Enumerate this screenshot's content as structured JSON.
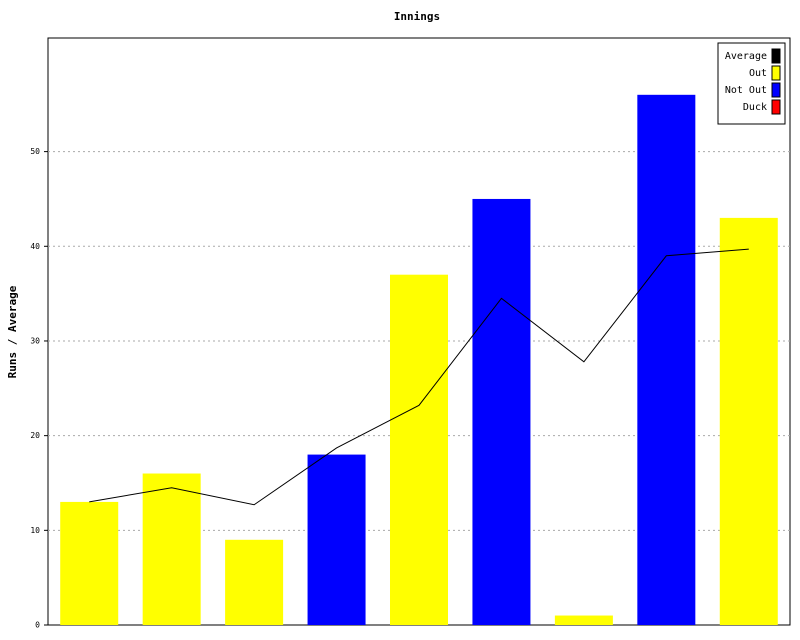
{
  "chart_data": {
    "type": "bar-line",
    "title": "Innings",
    "y_label": "Runs / Average",
    "categories": [
      null,
      null,
      null,
      null,
      null,
      null,
      null,
      null,
      null
    ],
    "series": [
      {
        "name": "Average",
        "type": "line",
        "color": "#000000",
        "values": [
          13,
          14.5,
          12.7,
          18.7,
          23.2,
          34.5,
          27.8,
          39,
          39.7
        ]
      },
      {
        "name": "Out",
        "type": "bar",
        "color": "#ffff00",
        "values": [
          13,
          16,
          9,
          null,
          37,
          null,
          1,
          null,
          43
        ]
      },
      {
        "name": "Not Out",
        "type": "bar",
        "color": "#0000ff",
        "values": [
          null,
          null,
          null,
          18,
          null,
          45,
          null,
          56,
          null
        ]
      },
      {
        "name": "Duck",
        "type": "bar",
        "color": "#ff0000",
        "values": [
          null,
          null,
          null,
          null,
          null,
          null,
          null,
          null,
          null
        ]
      }
    ],
    "ylim": [
      0,
      62
    ],
    "yticks": [
      0,
      10,
      20,
      30,
      40,
      50
    ],
    "grid": true,
    "legend": "upper right"
  }
}
